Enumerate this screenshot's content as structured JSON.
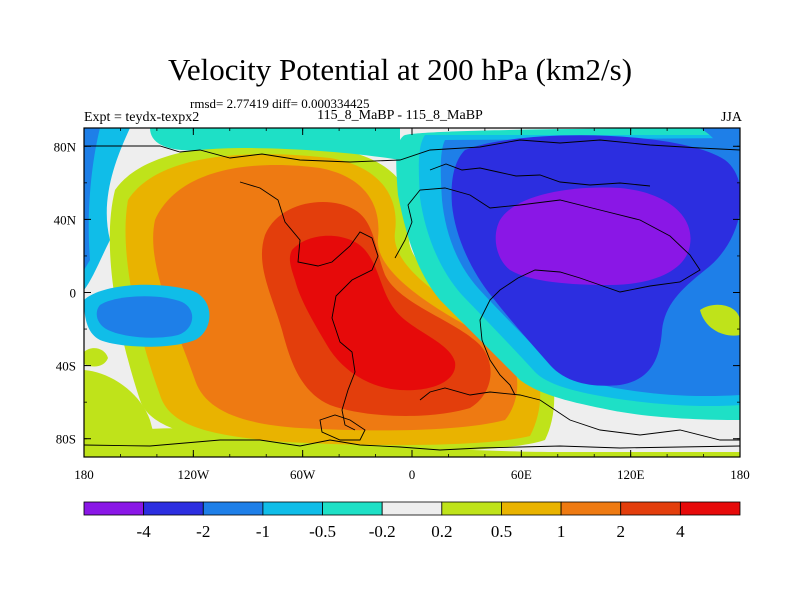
{
  "chart_data": {
    "type": "contour-map",
    "title": "Velocity Potential at 200 hPa (km2/s)",
    "stats_text": "rmsd= 2.77419 diff= 0.000334425",
    "left_label": "Expt = teydx-texpx2",
    "center_label": "115_8_MaBP - 115_8_MaBP",
    "right_label": "JJA",
    "x_ticks": [
      "180",
      "120W",
      "60W",
      "0",
      "60E",
      "120E",
      "180"
    ],
    "y_ticks": [
      "80N",
      "40N",
      "0",
      "40S",
      "80S"
    ],
    "xlim": [
      -180,
      180
    ],
    "ylim": [
      -90,
      90
    ],
    "colorbar": {
      "labels": [
        "-4",
        "-2",
        "-1",
        "-0.5",
        "-0.2",
        "0.2",
        "0.5",
        "1",
        "2",
        "4"
      ],
      "colors": [
        "#8a17e6",
        "#2c2ee0",
        "#1e7fe8",
        "#10bde8",
        "#1ee0c6",
        "#eeeeee",
        "#bfe31a",
        "#e9b300",
        "#ee7a12",
        "#e33e0c",
        "#e60a0a"
      ]
    }
  }
}
